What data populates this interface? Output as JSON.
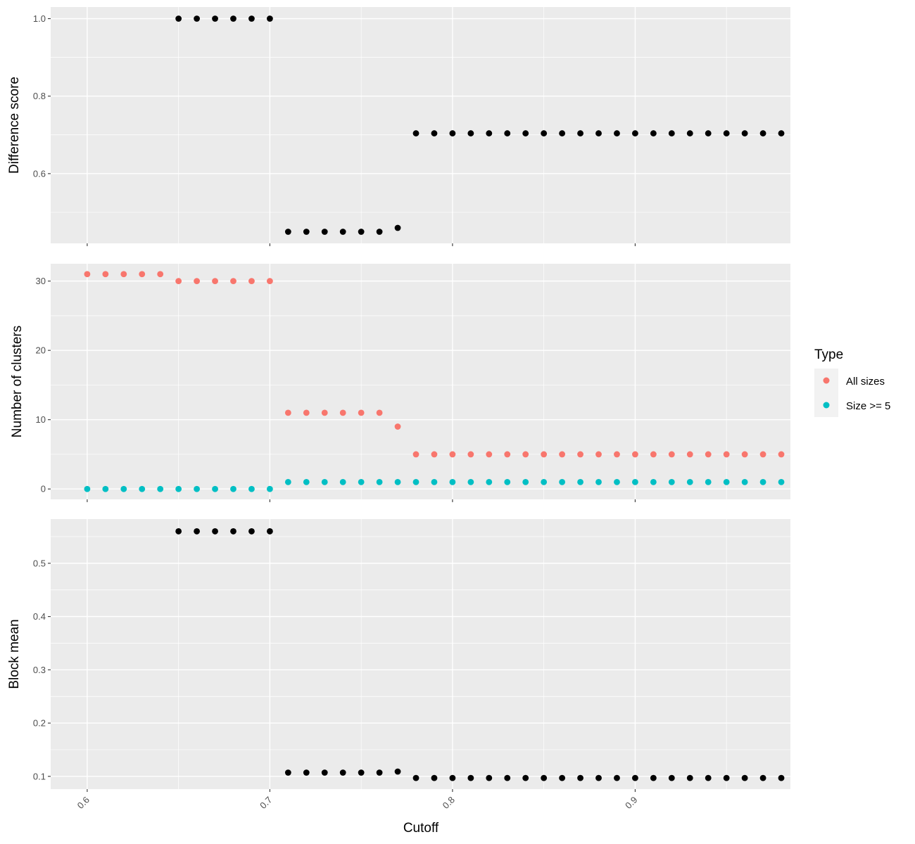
{
  "chart_data": [
    {
      "type": "scatter",
      "ylabel": "Difference score",
      "xlim": [
        0.58,
        0.985
      ],
      "ylim": [
        0.42,
        1.03
      ],
      "yticks": [
        0.6,
        0.8,
        1.0
      ],
      "ytick_labels": [
        "0.6",
        "0.8",
        "1.0"
      ],
      "series": [
        {
          "color": "#000000",
          "x": [
            0.65,
            0.66,
            0.67,
            0.68,
            0.69,
            0.7,
            0.71,
            0.72,
            0.73,
            0.74,
            0.75,
            0.76,
            0.77,
            0.78,
            0.79,
            0.8,
            0.81,
            0.82,
            0.83,
            0.84,
            0.85,
            0.86,
            0.87,
            0.88,
            0.89,
            0.9,
            0.91,
            0.92,
            0.93,
            0.94,
            0.95,
            0.96,
            0.97,
            0.98
          ],
          "y": [
            1.0,
            1.0,
            1.0,
            1.0,
            1.0,
            1.0,
            0.45,
            0.45,
            0.45,
            0.45,
            0.45,
            0.45,
            0.46,
            0.704,
            0.704,
            0.704,
            0.704,
            0.704,
            0.704,
            0.704,
            0.704,
            0.704,
            0.704,
            0.704,
            0.704,
            0.704,
            0.704,
            0.704,
            0.704,
            0.704,
            0.704,
            0.704,
            0.704,
            0.704
          ]
        }
      ]
    },
    {
      "type": "scatter",
      "ylabel": "Number of clusters",
      "xlim": [
        0.58,
        0.985
      ],
      "ylim": [
        -1.5,
        32.5
      ],
      "yticks": [
        0,
        10,
        20,
        30
      ],
      "ytick_labels": [
        "0",
        "10",
        "20",
        "30"
      ],
      "series": [
        {
          "name": "All sizes",
          "color": "#F8766D",
          "x": [
            0.6,
            0.61,
            0.62,
            0.63,
            0.64,
            0.65,
            0.66,
            0.67,
            0.68,
            0.69,
            0.7,
            0.71,
            0.72,
            0.73,
            0.74,
            0.75,
            0.76,
            0.77,
            0.78,
            0.79,
            0.8,
            0.81,
            0.82,
            0.83,
            0.84,
            0.85,
            0.86,
            0.87,
            0.88,
            0.89,
            0.9,
            0.91,
            0.92,
            0.93,
            0.94,
            0.95,
            0.96,
            0.97,
            0.98
          ],
          "y": [
            31,
            31,
            31,
            31,
            31,
            30,
            30,
            30,
            30,
            30,
            30,
            11,
            11,
            11,
            11,
            11,
            11,
            9,
            5,
            5,
            5,
            5,
            5,
            5,
            5,
            5,
            5,
            5,
            5,
            5,
            5,
            5,
            5,
            5,
            5,
            5,
            5,
            5,
            5
          ]
        },
        {
          "name": "Size >= 5",
          "color": "#00BFC4",
          "x": [
            0.6,
            0.61,
            0.62,
            0.63,
            0.64,
            0.65,
            0.66,
            0.67,
            0.68,
            0.69,
            0.7,
            0.71,
            0.72,
            0.73,
            0.74,
            0.75,
            0.76,
            0.77,
            0.78,
            0.79,
            0.8,
            0.81,
            0.82,
            0.83,
            0.84,
            0.85,
            0.86,
            0.87,
            0.88,
            0.89,
            0.9,
            0.91,
            0.92,
            0.93,
            0.94,
            0.95,
            0.96,
            0.97,
            0.98
          ],
          "y": [
            0,
            0,
            0,
            0,
            0,
            0,
            0,
            0,
            0,
            0,
            0,
            1,
            1,
            1,
            1,
            1,
            1,
            1,
            1,
            1,
            1,
            1,
            1,
            1,
            1,
            1,
            1,
            1,
            1,
            1,
            1,
            1,
            1,
            1,
            1,
            1,
            1,
            1,
            1
          ]
        }
      ]
    },
    {
      "type": "scatter",
      "ylabel": "Block mean",
      "xlabel": "Cutoff",
      "xlim": [
        0.58,
        0.985
      ],
      "ylim": [
        0.076,
        0.583
      ],
      "yticks": [
        0.1,
        0.2,
        0.3,
        0.4,
        0.5
      ],
      "ytick_labels": [
        "0.1",
        "0.2",
        "0.3",
        "0.4",
        "0.5"
      ],
      "xticks": [
        0.6,
        0.7,
        0.8,
        0.9
      ],
      "xtick_labels": [
        "0.6",
        "0.7",
        "0.8",
        "0.9"
      ],
      "series": [
        {
          "color": "#000000",
          "x": [
            0.65,
            0.66,
            0.67,
            0.68,
            0.69,
            0.7,
            0.71,
            0.72,
            0.73,
            0.74,
            0.75,
            0.76,
            0.77,
            0.78,
            0.79,
            0.8,
            0.81,
            0.82,
            0.83,
            0.84,
            0.85,
            0.86,
            0.87,
            0.88,
            0.89,
            0.9,
            0.91,
            0.92,
            0.93,
            0.94,
            0.95,
            0.96,
            0.97,
            0.98
          ],
          "y": [
            0.56,
            0.56,
            0.56,
            0.56,
            0.56,
            0.56,
            0.107,
            0.107,
            0.107,
            0.107,
            0.107,
            0.107,
            0.109,
            0.097,
            0.097,
            0.097,
            0.097,
            0.097,
            0.097,
            0.097,
            0.097,
            0.097,
            0.097,
            0.097,
            0.097,
            0.097,
            0.097,
            0.097,
            0.097,
            0.097,
            0.097,
            0.097,
            0.097,
            0.097
          ]
        }
      ]
    }
  ],
  "legend": {
    "title": "Type",
    "items": [
      {
        "label": "All sizes",
        "color": "#F8766D"
      },
      {
        "label": "Size >= 5",
        "color": "#00BFC4"
      }
    ]
  },
  "style": {
    "panel_background": "#EBEBEB",
    "grid_color": "#FFFFFF",
    "point_color_default": "#000000"
  }
}
